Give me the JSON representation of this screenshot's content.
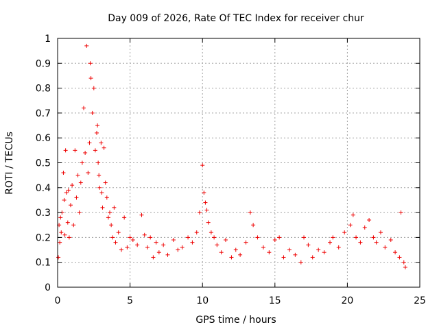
{
  "chart_data": {
    "type": "scatter",
    "title": "Day 009 of 2026, Rate Of TEC Index for receiver chur",
    "xlabel": "GPS time / hours",
    "ylabel": "ROTI / TECUs",
    "xlim": [
      0,
      25
    ],
    "ylim": [
      0,
      1
    ],
    "xticks": [
      "0",
      "5",
      "10",
      "15",
      "20",
      "25"
    ],
    "yticks": [
      "0",
      "0.1",
      "0.2",
      "0.3",
      "0.4",
      "0.5",
      "0.6",
      "0.7",
      "0.8",
      "0.9",
      "1"
    ],
    "grid": true,
    "marker": "+",
    "color": "#ee0000",
    "series": [
      {
        "x": [
          0.05,
          0.1,
          0.15,
          0.2,
          0.25,
          0.3,
          0.4,
          0.45,
          0.5,
          0.55,
          0.6,
          0.7,
          0.75,
          0.8,
          0.9,
          1.0,
          1.1,
          1.2,
          1.3,
          1.4,
          1.5,
          1.6,
          1.7,
          1.8,
          1.9,
          2.0,
          2.1,
          2.2,
          2.25,
          2.3,
          2.4,
          2.5,
          2.6,
          2.7,
          2.75,
          2.8,
          2.85,
          2.9,
          3.0,
          3.05,
          3.1,
          3.2,
          3.3,
          3.4,
          3.5,
          3.6,
          3.7,
          3.8,
          3.9,
          4.0,
          4.2,
          4.4,
          4.6,
          4.8,
          5.0,
          5.2,
          5.5,
          5.8,
          6.0,
          6.2,
          6.4,
          6.6,
          6.8,
          7.0,
          7.3,
          7.6,
          8.0,
          8.3,
          8.6,
          9.0,
          9.3,
          9.6,
          9.8,
          10.0,
          10.1,
          10.2,
          10.3,
          10.4,
          10.6,
          10.8,
          11.0,
          11.3,
          11.6,
          12.0,
          12.3,
          12.6,
          13.0,
          13.3,
          13.5,
          13.8,
          14.2,
          14.6,
          15.0,
          15.3,
          15.6,
          16.0,
          16.4,
          16.8,
          17.0,
          17.3,
          17.6,
          18.0,
          18.4,
          18.8,
          19.0,
          19.4,
          19.8,
          20.2,
          20.4,
          20.6,
          20.9,
          21.2,
          21.5,
          21.8,
          22.0,
          22.3,
          22.6,
          23.0,
          23.3,
          23.6,
          23.7,
          23.9,
          24.0
        ],
        "y": [
          0.12,
          0.25,
          0.18,
          0.28,
          0.22,
          0.3,
          0.46,
          0.35,
          0.21,
          0.55,
          0.38,
          0.26,
          0.39,
          0.2,
          0.33,
          0.41,
          0.25,
          0.55,
          0.36,
          0.45,
          0.3,
          0.42,
          0.5,
          0.72,
          0.54,
          0.97,
          0.46,
          0.58,
          0.9,
          0.84,
          0.7,
          0.8,
          0.55,
          0.62,
          0.65,
          0.5,
          0.45,
          0.4,
          0.58,
          0.38,
          0.32,
          0.56,
          0.42,
          0.36,
          0.28,
          0.3,
          0.25,
          0.2,
          0.32,
          0.18,
          0.22,
          0.15,
          0.28,
          0.16,
          0.2,
          0.19,
          0.17,
          0.29,
          0.21,
          0.16,
          0.2,
          0.12,
          0.18,
          0.14,
          0.17,
          0.13,
          0.19,
          0.15,
          0.16,
          0.2,
          0.18,
          0.22,
          0.3,
          0.49,
          0.38,
          0.34,
          0.31,
          0.26,
          0.22,
          0.2,
          0.17,
          0.14,
          0.19,
          0.12,
          0.15,
          0.13,
          0.18,
          0.3,
          0.25,
          0.2,
          0.16,
          0.14,
          0.19,
          0.2,
          0.12,
          0.15,
          0.13,
          0.1,
          0.2,
          0.17,
          0.12,
          0.15,
          0.14,
          0.18,
          0.2,
          0.16,
          0.22,
          0.25,
          0.29,
          0.2,
          0.18,
          0.24,
          0.27,
          0.2,
          0.18,
          0.22,
          0.16,
          0.19,
          0.14,
          0.12,
          0.3,
          0.1,
          0.08
        ]
      }
    ]
  }
}
